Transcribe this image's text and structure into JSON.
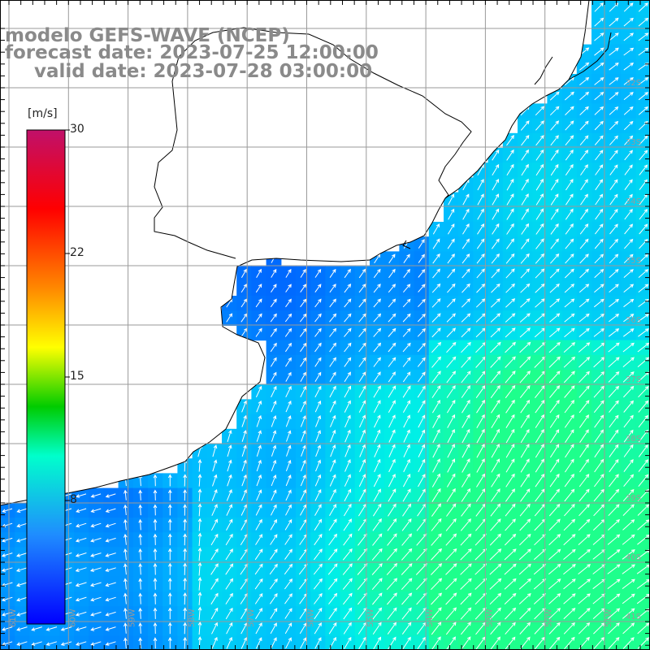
{
  "header": {
    "model": "modelo GEFS-WAVE (NCEP)",
    "forecast": "forecast date: 2023-07-25 12:00:00",
    "valid": "valid date: 2023-07-28 03:00:00"
  },
  "colorbar": {
    "unit": "[m/s]",
    "labels": [
      "30",
      "22",
      "15",
      "8"
    ],
    "colors": [
      "#c0106a",
      "#ff0000",
      "#ff9900",
      "#ffff00",
      "#00cc00",
      "#00ffcc",
      "#1f6eff",
      "#0000ff"
    ]
  },
  "map": {
    "lat_labels": [
      "32S",
      "33S",
      "34S",
      "35S",
      "36S",
      "37S",
      "38S",
      "39S",
      "40S",
      "41S"
    ],
    "lon_labels": [
      "61W",
      "60W",
      "59W",
      "58W",
      "57W",
      "56W",
      "55W",
      "54W",
      "53W",
      "52W",
      "51W"
    ],
    "land_color": "#ffffff",
    "grid_color": "#9a9a9a"
  }
}
